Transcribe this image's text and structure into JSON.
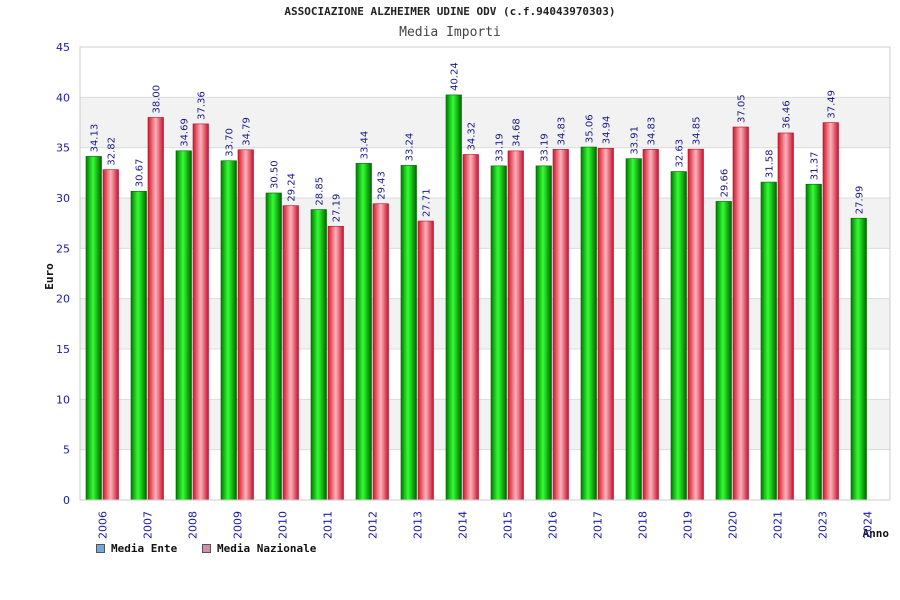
{
  "title": "ASSOCIAZIONE ALZHEIMER UDINE ODV (c.f.94043970303)",
  "subtitle": "Media Importi",
  "legend": {
    "ente_label": "Media Ente",
    "nazionale_label": "Media Nazionale"
  },
  "colors": {
    "ente": "#00b400",
    "nazionale": "#e8283a",
    "legend_ente": "#6fa8dc",
    "legend_nazionale": "#d48fb0",
    "axis_text": "#1a1aa6",
    "label_text": "#1a1a8c"
  },
  "chart_data": {
    "type": "bar",
    "xlabel": "Anno",
    "ylabel": "Euro",
    "ylim": [
      0,
      45
    ],
    "yticks": [
      0,
      5,
      10,
      15,
      20,
      25,
      30,
      35,
      40,
      45
    ],
    "grid": true,
    "legend_position": "bottom-left",
    "categories": [
      "2006",
      "2007",
      "2008",
      "2009",
      "2010",
      "2011",
      "2012",
      "2013",
      "2014",
      "2015",
      "2016",
      "2017",
      "2018",
      "2019",
      "2020",
      "2021",
      "2023",
      "2024"
    ],
    "series": [
      {
        "name": "Media Ente",
        "values": [
          34.13,
          30.67,
          34.69,
          33.7,
          30.5,
          28.85,
          33.44,
          33.24,
          40.24,
          33.19,
          33.19,
          35.06,
          33.91,
          32.63,
          29.66,
          31.58,
          31.37,
          27.99
        ],
        "labels": [
          "34.13",
          "30.67",
          "34.69",
          "33.70",
          "30.50",
          "28.85",
          "33.44",
          "33.24",
          "40.24",
          "33.19",
          "33.19",
          "35.06",
          "33.91",
          "32.63",
          "29.66",
          "31.58",
          "31.37",
          "27.99"
        ]
      },
      {
        "name": "Media Nazionale",
        "values": [
          32.82,
          38.0,
          37.36,
          34.79,
          29.24,
          27.19,
          29.43,
          27.71,
          34.32,
          34.68,
          34.83,
          34.94,
          34.83,
          34.85,
          37.05,
          36.46,
          37.49,
          null
        ],
        "labels": [
          "32.82",
          "38.00",
          "37.36",
          "34.79",
          "29.24",
          "27.19",
          "29.43",
          "27.71",
          "34.32",
          "34.68",
          "34.83",
          "34.94",
          "34.83",
          "34.85",
          "37.05",
          "36.46",
          "37.49",
          null
        ]
      }
    ]
  }
}
